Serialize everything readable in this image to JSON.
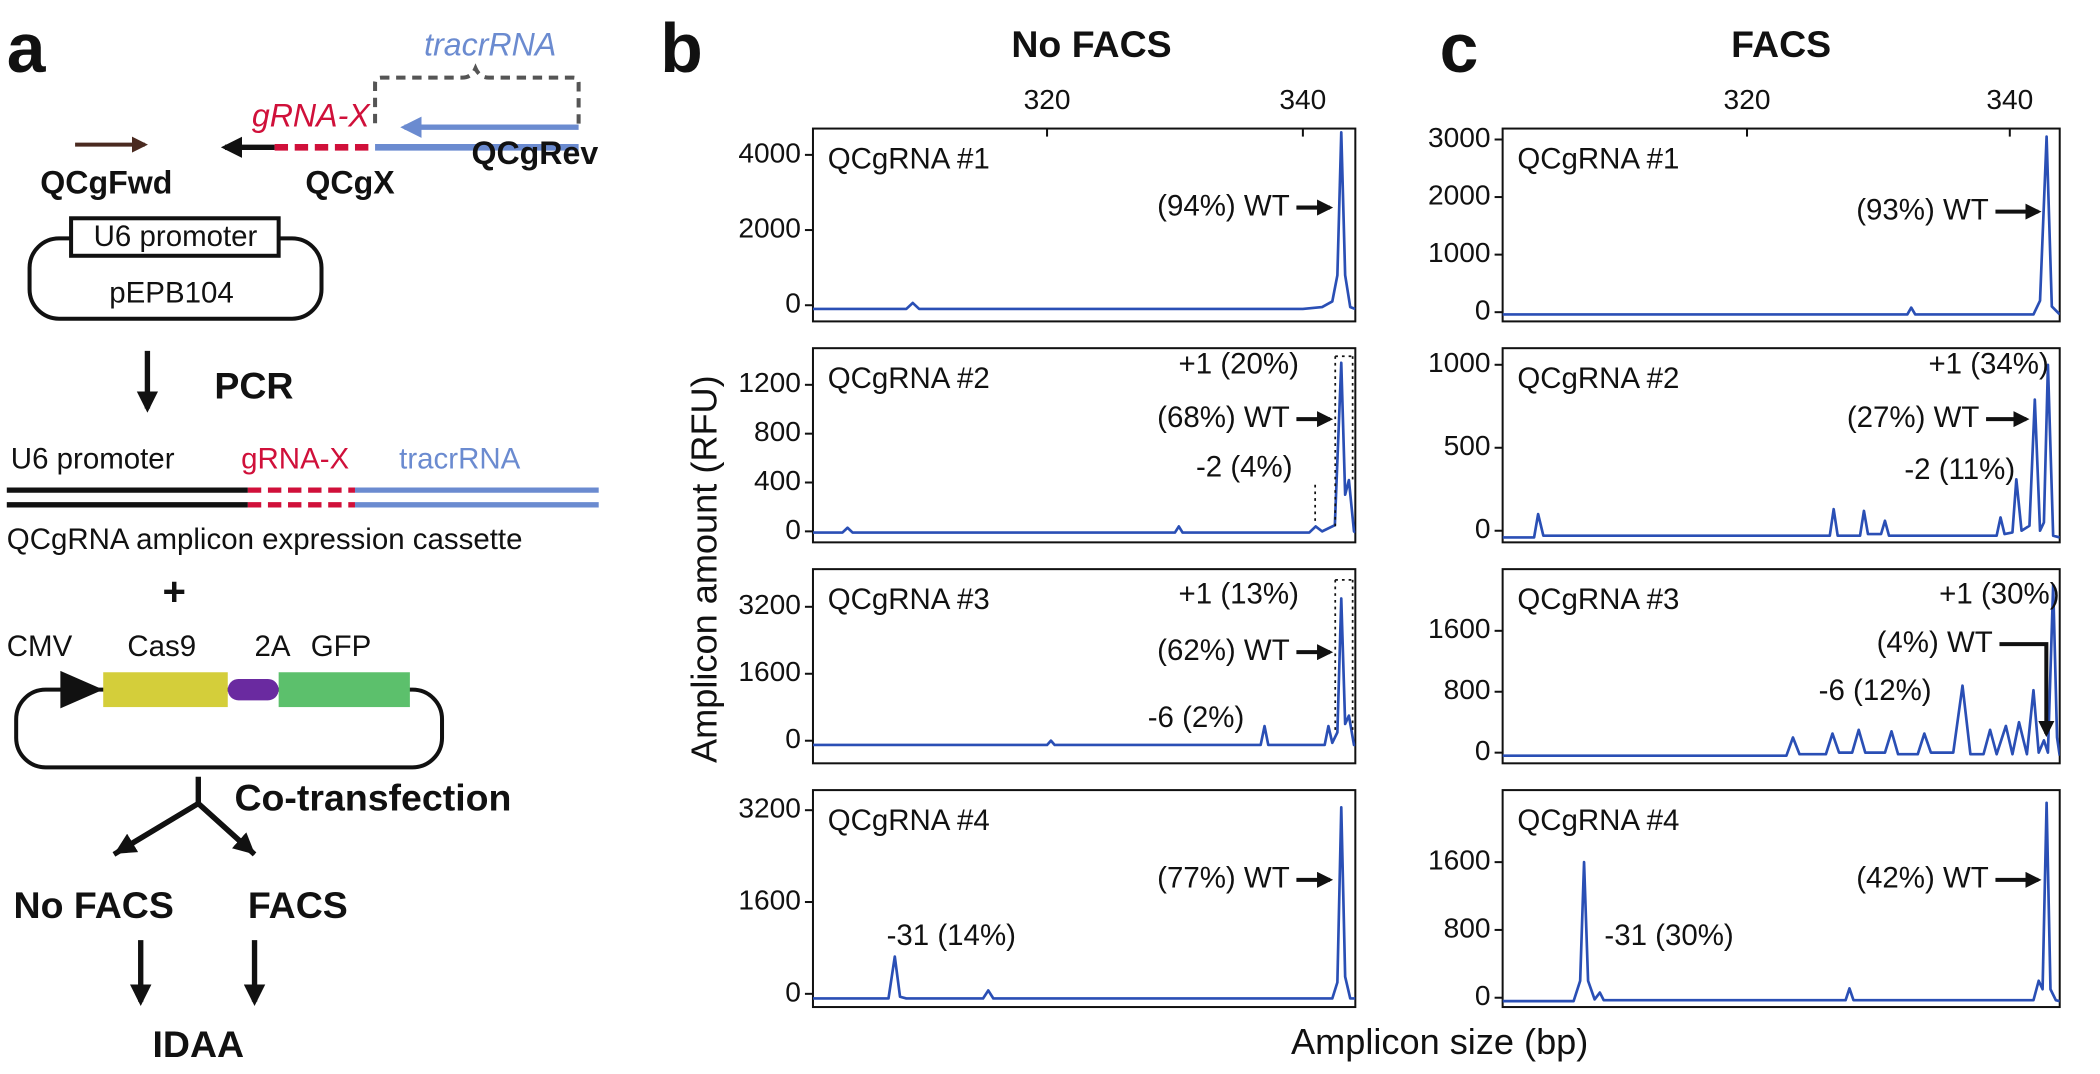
{
  "panel_a": {
    "label": "a",
    "tracrRNA_top": "tracrRNA",
    "gRNA_top": "gRNA-X",
    "fwd": "QCgFwd",
    "qcgx": "QCgX",
    "rev": "QCgRev",
    "u6_box": "U6 promoter",
    "plasmid1": "pEPB104",
    "pcr": "PCR",
    "u6": "U6 promoter",
    "gRNA": "gRNA-X",
    "tracrRNA": "tracrRNA",
    "cassette": "QCgRNA amplicon expression cassette",
    "plus": "+",
    "cmv": "CMV",
    "cas9": "Cas9",
    "p2a": "2A",
    "gfp": "GFP",
    "cotransfection": "Co-transfection",
    "no_facs": "No FACS",
    "facs": "FACS",
    "idaa": "IDAA"
  },
  "panels": [
    {
      "label": "b",
      "title": "No FACS"
    },
    {
      "label": "c",
      "title": "FACS"
    }
  ],
  "y_label": "Amplicon amount (RFU)",
  "x_label": "Amplicon size (bp)",
  "chart_data": [
    {
      "type": "line",
      "title": "QCgRNA #1",
      "xlim": [
        301.7,
        344.1
      ],
      "xticks": [
        320,
        340
      ],
      "ylim": [
        -430,
        4700
      ],
      "yticks": [
        0,
        2000,
        4000
      ],
      "x": [
        301.7,
        309,
        309.5,
        310,
        340,
        341.5,
        342.3,
        342.7,
        343,
        343.3,
        343.7,
        344.1
      ],
      "series": [
        {
          "color": "#2a4fb5",
          "values": [
            -100,
            -100,
            60,
            -100,
            -100,
            -50,
            100,
            800,
            4600,
            800,
            -50,
            -100
          ]
        }
      ],
      "annotations": [
        "(94%) WT"
      ]
    },
    {
      "type": "line",
      "title": "QCgRNA #2",
      "xlim": [
        301.7,
        344.1
      ],
      "ylim": [
        -90,
        1500
      ],
      "yticks": [
        0,
        400,
        800,
        1200
      ],
      "x": [
        301.7,
        304,
        304.4,
        304.8,
        330,
        330.3,
        330.6,
        340.5,
        341,
        341.5,
        342.5,
        343,
        343.3,
        343.6,
        344,
        344.1
      ],
      "series": [
        {
          "color": "#2a4fb5",
          "values": [
            -10,
            -10,
            30,
            -10,
            -10,
            40,
            -10,
            -10,
            40,
            0,
            50,
            1380,
            300,
            420,
            0,
            -10
          ]
        }
      ],
      "annotations": [
        "+1 (20%)",
        "(68%) WT",
        "-2 (4%)"
      ]
    },
    {
      "type": "line",
      "title": "QCgRNA #3",
      "xlim": [
        301.7,
        344.1
      ],
      "ylim": [
        -540,
        4100
      ],
      "yticks": [
        0,
        1600,
        3200
      ],
      "x": [
        301.7,
        320,
        320.3,
        320.6,
        336.7,
        337,
        337.3,
        341.7,
        342,
        342.3,
        342.7,
        343,
        343.3,
        343.6,
        344,
        344.1
      ],
      "series": [
        {
          "color": "#2a4fb5",
          "values": [
            -100,
            -100,
            0,
            -100,
            -100,
            350,
            -100,
            -100,
            350,
            -50,
            200,
            3400,
            400,
            600,
            -100,
            -100
          ]
        }
      ],
      "annotations": [
        "+1 (13%)",
        "(62%) WT",
        "-6 (2%)"
      ]
    },
    {
      "type": "line",
      "title": "QCgRNA #4",
      "xlim": [
        301.7,
        344.1
      ],
      "ylim": [
        -230,
        3550
      ],
      "yticks": [
        0,
        1600,
        3200
      ],
      "x": [
        301.7,
        307.6,
        308.1,
        308.5,
        309,
        315,
        315.4,
        315.8,
        342.3,
        342.7,
        343,
        343.3,
        343.7,
        344.1
      ],
      "series": [
        {
          "color": "#2a4fb5",
          "values": [
            -80,
            -80,
            650,
            -50,
            -80,
            -80,
            60,
            -80,
            -80,
            200,
            3250,
            300,
            -80,
            -80
          ]
        }
      ],
      "annotations": [
        "(77%) WT",
        "-31 (14%)"
      ]
    },
    {
      "type": "line",
      "title": "QCgRNA #1",
      "xlim": [
        301.4,
        343.8
      ],
      "xticks": [
        320,
        340
      ],
      "ylim": [
        -160,
        3190
      ],
      "yticks": [
        0,
        1000,
        2000,
        3000
      ],
      "x": [
        301.4,
        332.2,
        332.5,
        332.8,
        341.8,
        342.3,
        342.8,
        343.2,
        343.8
      ],
      "series": [
        {
          "color": "#2a4fb5",
          "values": [
            -40,
            -40,
            80,
            -40,
            -40,
            200,
            3050,
            100,
            -40
          ]
        }
      ],
      "annotations": [
        "(93%) WT"
      ]
    },
    {
      "type": "line",
      "title": "QCgRNA #2",
      "xlim": [
        301.4,
        343.8
      ],
      "ylim": [
        -70,
        1100
      ],
      "yticks": [
        0,
        500,
        1000
      ],
      "x": [
        301.4,
        303.8,
        304.1,
        304.5,
        326.3,
        326.6,
        326.9,
        328.6,
        328.9,
        329.2,
        330.2,
        330.5,
        330.8,
        339,
        339.3,
        339.6,
        340.2,
        340.5,
        340.9,
        341.5,
        341.9,
        342.3,
        342.6,
        342.9,
        343.3,
        343.8
      ],
      "series": [
        {
          "color": "#2a4fb5",
          "values": [
            -40,
            -40,
            100,
            -30,
            -30,
            130,
            -30,
            -30,
            120,
            -20,
            -20,
            60,
            -30,
            -30,
            80,
            -20,
            -10,
            310,
            0,
            30,
            790,
            0,
            50,
            1000,
            -30,
            -40
          ]
        }
      ],
      "annotations": [
        "+1 (34%)",
        "(27%) WT",
        "-2 (11%)"
      ]
    },
    {
      "type": "line",
      "title": "QCgRNA #3",
      "xlim": [
        301.4,
        343.8
      ],
      "ylim": [
        -140,
        2410
      ],
      "yticks": [
        0,
        800,
        1600
      ],
      "x": [
        301.4,
        323,
        323.5,
        324,
        326,
        326.5,
        327,
        328,
        328.5,
        329,
        330.5,
        331,
        331.5,
        333,
        333.5,
        334,
        335.7,
        336.4,
        337,
        338,
        338.5,
        339,
        339.7,
        340.2,
        340.7,
        341.3,
        341.8,
        342.2,
        342.6,
        342.9,
        343.3,
        343.6,
        343.8
      ],
      "series": [
        {
          "color": "#2a4fb5",
          "values": [
            -40,
            -40,
            200,
            -20,
            -20,
            250,
            0,
            0,
            300,
            0,
            0,
            280,
            -20,
            -20,
            250,
            0,
            0,
            880,
            -20,
            -20,
            300,
            -20,
            350,
            -20,
            400,
            -20,
            820,
            0,
            160,
            0,
            2200,
            200,
            -40
          ]
        }
      ],
      "annotations": [
        "+1 (30%)",
        "(4%) WT",
        "-6 (12%)"
      ]
    },
    {
      "type": "line",
      "title": "QCgRNA #4",
      "xlim": [
        301.4,
        343.8
      ],
      "ylim": [
        -110,
        2450
      ],
      "yticks": [
        0,
        800,
        1600
      ],
      "x": [
        301.4,
        306.8,
        307.3,
        307.6,
        307.9,
        308.4,
        308.8,
        309.1,
        327.5,
        327.8,
        328.1,
        341.8,
        342.2,
        342.5,
        342.8,
        343.1,
        343.5,
        343.8
      ],
      "series": [
        {
          "color": "#2a4fb5",
          "values": [
            -40,
            -40,
            200,
            1600,
            200,
            -20,
            60,
            -30,
            -30,
            110,
            -30,
            -30,
            200,
            100,
            2300,
            100,
            -30,
            -40
          ]
        }
      ],
      "annotations": [
        "(42%) WT",
        "-31 (30%)"
      ]
    }
  ]
}
